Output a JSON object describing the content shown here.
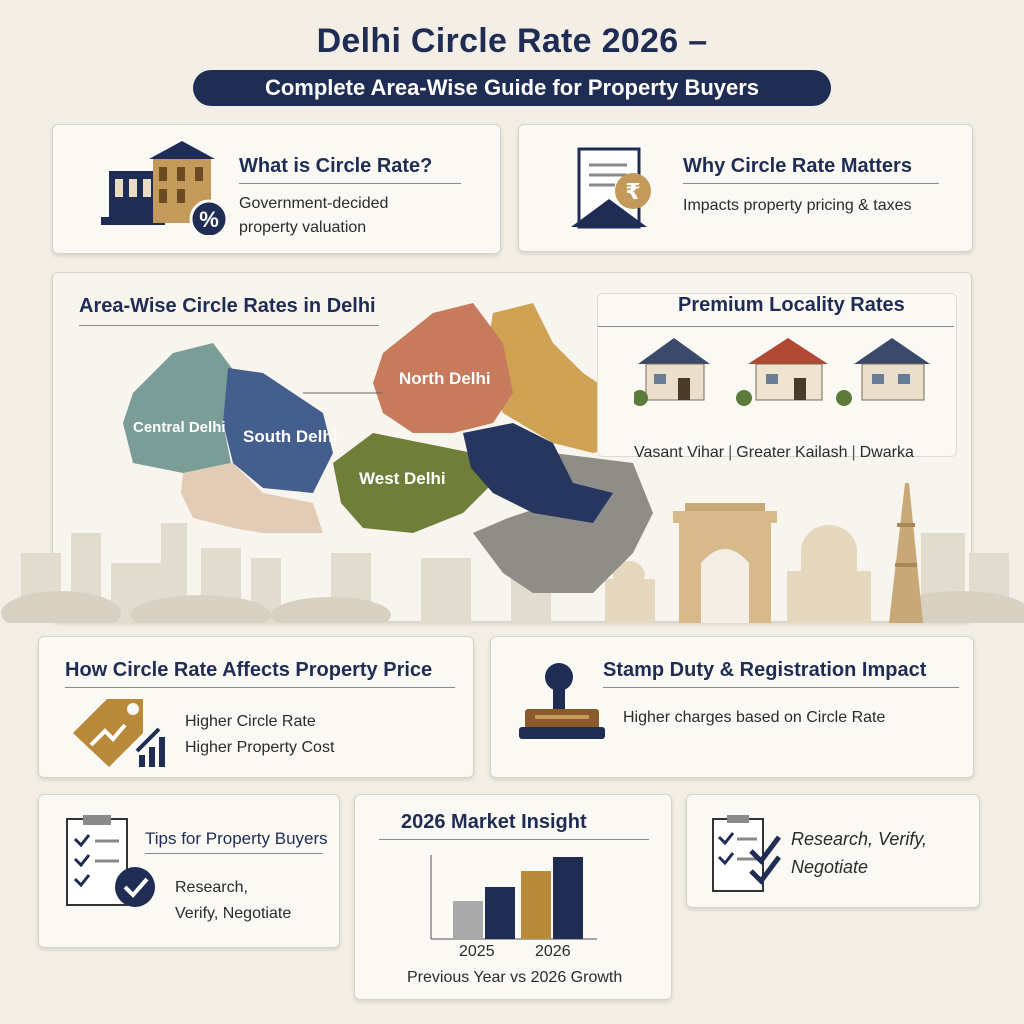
{
  "header": {
    "title": "Delhi Circle Rate 2026 –",
    "subtitle": "Complete Area-Wise Guide for Property Buyers"
  },
  "what_is": {
    "heading": "What is Circle Rate?",
    "line1": "Government-decided",
    "line2": "property valuation",
    "icon": "percent-icon"
  },
  "why_matters": {
    "heading": "Why Circle Rate Matters",
    "text": "Impacts property pricing & taxes",
    "icon": "rupee-document-icon"
  },
  "map_section": {
    "heading": "Area-Wise Circle Rates in Delhi",
    "regions": {
      "central": "Central Delhi",
      "south": "South Delhi",
      "north": "North Delhi",
      "west": "West Delhi"
    }
  },
  "premium": {
    "heading": "Premium Locality Rates",
    "localities": [
      "Vasant Vihar",
      "Greater Kailash",
      "Dwarka"
    ],
    "separator": "|"
  },
  "price_effect": {
    "heading": "How Circle Rate Affects Property Price",
    "line1": "Higher Circle Rate",
    "line2": "Higher Property Cost",
    "icon": "price-tag-icon"
  },
  "stamp": {
    "heading": "Stamp Duty & Registration Impact",
    "text": "Higher charges based on Circle Rate",
    "icon": "stamp-icon"
  },
  "tips": {
    "heading": "Tips for Property Buyers",
    "line1": "Research,",
    "line2": "Verify, Negotiate",
    "icon": "checklist-icon"
  },
  "market": {
    "heading": "2026 Market Insight",
    "labels": [
      "2025",
      "2026"
    ],
    "caption": "Previous Year vs 2026 Growth"
  },
  "checklist2": {
    "line1": "Research, Verify,",
    "line2": "Negotiate",
    "icon": "checklist-icon"
  },
  "colors": {
    "navy": "#1f2d55",
    "gold": "#b8893a",
    "terracotta": "#c77a5c",
    "olive": "#6f7f3a",
    "slate": "#6f8f8d",
    "mustard": "#cfa254"
  }
}
